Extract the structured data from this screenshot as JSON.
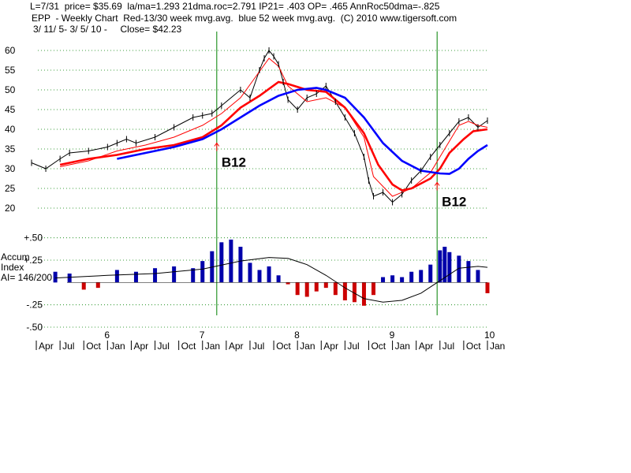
{
  "header": {
    "line1": "L=7/31  price= $35.69  la/ma=1.293 21dma.roc=2.791 IP21= .403 OP= .465 AnnRoc50dma=-.825",
    "line2": "EPP  - Weekly Chart  Red-13/30 week mvg.avg.  blue 52 week mvg.avg.  (C) 2010 www.tigersoft.com",
    "line3": "3/ 11/ 5- 3/ 5/ 10 -     Close= $42.23"
  },
  "accum_label": [
    "Accum",
    "Index",
    "AI= 146/200"
  ],
  "colors": {
    "price": "#000000",
    "ma13": "#ff0000",
    "ma30": "#ff0000",
    "ma52": "#0000ff",
    "accum_pos": "#0000aa",
    "accum_neg": "#cc0000",
    "signal": "#008000",
    "grid": "#008000"
  },
  "chart_data": [
    {
      "type": "line",
      "title": "EPP - Weekly Chart",
      "ylim": [
        20,
        62
      ],
      "yticks": [
        "60",
        "55",
        "50",
        "45",
        "40",
        "35",
        "30",
        "25",
        "20"
      ],
      "ytick_values": [
        60,
        55,
        50,
        45,
        40,
        35,
        30,
        25,
        20
      ],
      "xlim": [
        5.2,
        10.0
      ],
      "year_ticks": [
        "6",
        "7",
        "8",
        "9",
        "10"
      ],
      "year_values": [
        6,
        7,
        8,
        9,
        10
      ],
      "month_ticks": [
        "Apr",
        "Jul",
        "Oct",
        "Jan",
        "Apr",
        "Jul",
        "Oct",
        "Jan",
        "Apr",
        "Jul",
        "Oct",
        "Jan",
        "Apr",
        "Jul",
        "Oct",
        "Jan",
        "Apr",
        "Jul",
        "Oct",
        "Jan"
      ],
      "month_values": [
        5.25,
        5.5,
        5.75,
        6.0,
        6.25,
        6.5,
        6.75,
        7.0,
        7.25,
        7.5,
        7.75,
        8.0,
        8.25,
        8.5,
        8.75,
        9.0,
        9.25,
        9.5,
        9.75,
        10.0
      ],
      "signals": [
        {
          "label": "B12",
          "x": 7.15,
          "y": 36.5
        },
        {
          "label": "B12",
          "x": 9.47,
          "y": 26.5
        }
      ],
      "series": [
        {
          "name": "price",
          "x": [
            5.2,
            5.35,
            5.5,
            5.6,
            5.8,
            6.0,
            6.1,
            6.2,
            6.3,
            6.5,
            6.7,
            6.9,
            7.0,
            7.1,
            7.2,
            7.4,
            7.5,
            7.6,
            7.65,
            7.7,
            7.75,
            7.8,
            7.85,
            7.9,
            8.0,
            8.1,
            8.2,
            8.3,
            8.4,
            8.5,
            8.6,
            8.7,
            8.75,
            8.8,
            8.9,
            9.0,
            9.1,
            9.2,
            9.3,
            9.4,
            9.5,
            9.6,
            9.7,
            9.8,
            9.9,
            10.0
          ],
          "values": [
            31.5,
            30.0,
            32.5,
            34.0,
            34.5,
            35.5,
            36.5,
            37.5,
            36.5,
            38.0,
            40.5,
            43.0,
            43.5,
            44.0,
            46.0,
            50.0,
            48.0,
            55.0,
            58.0,
            60.0,
            58.5,
            56.5,
            52.0,
            47.5,
            45.0,
            48.0,
            49.0,
            51.0,
            47.0,
            43.0,
            39.0,
            33.0,
            27.0,
            23.0,
            24.0,
            21.5,
            23.5,
            27.0,
            29.5,
            33.0,
            36.0,
            39.0,
            42.0,
            43.0,
            40.5,
            42.2
          ]
        },
        {
          "name": "ma13",
          "x": [
            5.5,
            5.8,
            6.1,
            6.4,
            6.7,
            7.0,
            7.2,
            7.4,
            7.55,
            7.7,
            7.8,
            7.9,
            8.1,
            8.3,
            8.5,
            8.7,
            8.8,
            9.0,
            9.2,
            9.4,
            9.5,
            9.6,
            9.7,
            9.8,
            9.9,
            10.0
          ],
          "values": [
            30.5,
            32.0,
            34.5,
            36.0,
            38.0,
            41.0,
            44.0,
            48.0,
            53.0,
            58.0,
            56.0,
            51.0,
            47.0,
            48.0,
            45.5,
            38.0,
            28.0,
            23.0,
            25.0,
            29.0,
            33.0,
            37.0,
            41.0,
            42.0,
            41.0,
            40.5
          ]
        },
        {
          "name": "ma30",
          "x": [
            5.5,
            5.8,
            6.1,
            6.4,
            6.7,
            7.0,
            7.2,
            7.4,
            7.6,
            7.8,
            7.9,
            8.1,
            8.3,
            8.5,
            8.7,
            8.85,
            9.0,
            9.1,
            9.2,
            9.4,
            9.5,
            9.6,
            9.75,
            9.85,
            10.0
          ],
          "values": [
            31.0,
            32.5,
            33.5,
            35.0,
            36.0,
            38.0,
            41.0,
            45.5,
            48.5,
            52.0,
            51.5,
            50.0,
            49.5,
            45.5,
            39.0,
            31.0,
            26.0,
            24.5,
            25.0,
            27.5,
            30.0,
            34.0,
            37.5,
            39.5,
            40.0
          ]
        },
        {
          "name": "ma52",
          "x": [
            6.1,
            6.4,
            6.7,
            7.0,
            7.2,
            7.4,
            7.6,
            7.8,
            8.0,
            8.2,
            8.3,
            8.5,
            8.7,
            8.9,
            9.1,
            9.3,
            9.5,
            9.6,
            9.7,
            9.8,
            9.9,
            10.0
          ],
          "values": [
            32.5,
            34.0,
            35.5,
            37.5,
            40.0,
            43.0,
            46.0,
            48.5,
            50.0,
            50.5,
            50.0,
            48.0,
            43.0,
            36.5,
            32.0,
            29.5,
            28.8,
            28.7,
            30.0,
            32.5,
            34.5,
            36.0
          ]
        }
      ]
    },
    {
      "type": "bar",
      "title": "Accum Index",
      "ylim": [
        -0.5,
        0.55
      ],
      "yticks": [
        "+.50",
        "+.25",
        "-.25",
        "-.50"
      ],
      "ytick_values": [
        0.5,
        0.25,
        -0.25,
        -0.5
      ],
      "x": [
        5.45,
        5.6,
        5.75,
        5.9,
        6.1,
        6.3,
        6.5,
        6.7,
        6.9,
        7.0,
        7.1,
        7.2,
        7.3,
        7.4,
        7.5,
        7.6,
        7.7,
        7.8,
        7.9,
        8.0,
        8.1,
        8.2,
        8.3,
        8.4,
        8.5,
        8.6,
        8.7,
        8.8,
        8.9,
        9.0,
        9.1,
        9.2,
        9.3,
        9.4,
        9.5,
        9.55,
        9.6,
        9.7,
        9.8,
        9.9,
        10.0
      ],
      "values": [
        0.12,
        0.1,
        -0.08,
        -0.06,
        0.14,
        0.12,
        0.16,
        0.18,
        0.16,
        0.24,
        0.35,
        0.45,
        0.48,
        0.4,
        0.22,
        0.14,
        0.18,
        0.08,
        -0.02,
        -0.14,
        -0.16,
        -0.1,
        -0.06,
        -0.14,
        -0.2,
        -0.22,
        -0.26,
        -0.14,
        0.06,
        0.08,
        0.06,
        0.12,
        0.14,
        0.2,
        0.36,
        0.4,
        0.34,
        0.3,
        0.24,
        0.14,
        -0.12
      ],
      "ma_line": {
        "x": [
          5.45,
          6.0,
          6.5,
          7.0,
          7.4,
          7.7,
          7.9,
          8.1,
          8.3,
          8.5,
          8.7,
          8.9,
          9.1,
          9.3,
          9.5,
          9.7,
          9.9,
          10.0
        ],
        "values": [
          0.05,
          0.08,
          0.1,
          0.15,
          0.24,
          0.28,
          0.27,
          0.2,
          0.08,
          -0.06,
          -0.18,
          -0.22,
          -0.2,
          -0.12,
          0.02,
          0.16,
          0.18,
          0.17
        ]
      },
      "signals": [
        {
          "x": 7.15
        },
        {
          "x": 9.47
        }
      ]
    }
  ]
}
